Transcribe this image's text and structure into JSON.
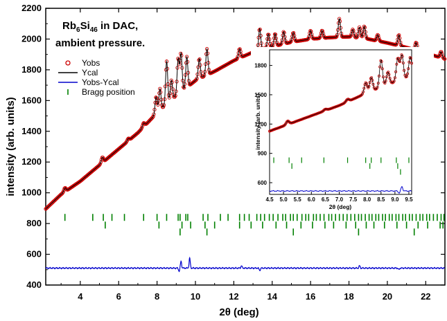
{
  "chart_data": [
    {
      "type": "line",
      "title_main": "Rb",
      "title_sub1": "6",
      "title_mid": "Si",
      "title_sub2": "46",
      "title_rest": " in DAC,",
      "title_line2": "ambient pressure.",
      "xlabel": "2θ (deg)",
      "ylabel": "intensity (arb. units)",
      "xlim": [
        2.2,
        23.0
      ],
      "ylim": [
        400,
        2200
      ],
      "xticks": [
        "4",
        "6",
        "8",
        "10",
        "12",
        "14",
        "16",
        "18",
        "20",
        "22"
      ],
      "yticks": [
        "400",
        "600",
        "800",
        "1000",
        "1200",
        "1400",
        "1600",
        "1800",
        "2000",
        "2200"
      ],
      "legend": [
        {
          "label": "Yobs",
          "color": "#cc0000",
          "marker": "circle"
        },
        {
          "label": "Ycal",
          "color": "#000000",
          "marker": "line"
        },
        {
          "label": "Yobs-Ycal",
          "color": "#0000cc",
          "marker": "line"
        },
        {
          "label": "Bragg position",
          "color": "#008000",
          "marker": "tick"
        }
      ],
      "background": {
        "points": [
          [
            2.2,
            895
          ],
          [
            3,
            990
          ],
          [
            4,
            1075
          ],
          [
            5,
            1180
          ],
          [
            6,
            1285
          ],
          [
            7,
            1390
          ],
          [
            8,
            1520
          ],
          [
            9,
            1630
          ],
          [
            10,
            1730
          ],
          [
            11,
            1790
          ],
          [
            12,
            1860
          ],
          [
            13,
            1915
          ],
          [
            14,
            1950
          ],
          [
            15,
            1980
          ],
          [
            16,
            2000
          ],
          [
            17,
            2010
          ],
          [
            18,
            2015
          ],
          [
            19,
            2000
          ],
          [
            20,
            1975
          ],
          [
            21,
            1945
          ],
          [
            22,
            1910
          ],
          [
            23,
            1870
          ]
        ]
      },
      "peaks": [
        {
          "x": 3.2,
          "h": 25
        },
        {
          "x": 5.15,
          "h": 35
        },
        {
          "x": 6.5,
          "h": 15
        },
        {
          "x": 7.3,
          "h": 25
        },
        {
          "x": 7.95,
          "h": 110
        },
        {
          "x": 8.15,
          "h": 140
        },
        {
          "x": 8.5,
          "h": 280
        },
        {
          "x": 8.75,
          "h": 130
        },
        {
          "x": 9.1,
          "h": 230
        },
        {
          "x": 9.25,
          "h": 250
        },
        {
          "x": 9.55,
          "h": 200
        },
        {
          "x": 10.2,
          "h": 130
        },
        {
          "x": 10.6,
          "h": 170
        },
        {
          "x": 12.3,
          "h": 60
        },
        {
          "x": 13.35,
          "h": 140
        },
        {
          "x": 13.8,
          "h": 90
        },
        {
          "x": 14.15,
          "h": 80
        },
        {
          "x": 14.6,
          "h": 80
        },
        {
          "x": 15.1,
          "h": 60
        },
        {
          "x": 16.0,
          "h": 55
        },
        {
          "x": 16.6,
          "h": 50
        },
        {
          "x": 17.5,
          "h": 120
        },
        {
          "x": 18.2,
          "h": 50
        },
        {
          "x": 18.55,
          "h": 70
        },
        {
          "x": 18.8,
          "h": 80
        },
        {
          "x": 19.5,
          "h": 40
        },
        {
          "x": 20.6,
          "h": 70
        },
        {
          "x": 21.5,
          "h": 50
        },
        {
          "x": 22.8,
          "h": 40
        }
      ],
      "diff_baseline": 510,
      "diff_spikes": [
        [
          9.25,
          555
        ],
        [
          9.7,
          575
        ],
        [
          9.15,
          490
        ],
        [
          12.4,
          525
        ],
        [
          13.35,
          495
        ],
        [
          18.55,
          525
        ],
        [
          20.6,
          500
        ]
      ],
      "bragg_rows": [
        {
          "y": 840,
          "x": [
            3.2,
            4.65,
            5.2,
            5.65,
            6.3,
            7.3,
            8.0,
            8.5,
            9.1,
            9.2,
            9.5,
            9.6,
            10.4,
            10.65,
            11.3,
            11.7,
            12.3,
            12.55,
            12.8,
            13.2,
            13.4,
            13.6,
            13.85,
            14.05,
            14.3,
            14.55,
            14.7,
            14.95,
            15.1,
            15.3,
            15.55,
            15.75,
            15.9,
            16.15,
            16.3,
            16.5,
            16.7,
            16.95,
            17.1,
            17.3,
            17.5,
            17.7,
            17.9,
            18.1,
            18.3,
            18.5,
            18.65,
            18.85,
            19.05,
            19.2,
            19.4,
            19.55,
            19.75,
            19.9,
            20.1,
            20.25,
            20.45,
            20.6,
            20.8,
            20.95,
            21.15,
            21.3,
            21.5,
            21.7,
            21.85,
            22.05,
            22.2,
            22.4,
            22.6,
            22.8,
            22.95
          ]
        },
        {
          "y": 790,
          "x": [
            5.3,
            8.1,
            9.3,
            9.75,
            10.5,
            11.0,
            12.3,
            12.9,
            13.5,
            14.2,
            14.75,
            15.5,
            16.1,
            16.75,
            17.2,
            17.85,
            18.35,
            18.9,
            19.3,
            19.85,
            20.5,
            21.0,
            21.6,
            22.1,
            22.75,
            22.9
          ]
        },
        {
          "y": 745,
          "x": [
            9.2,
            10.6,
            15.1,
            18.5,
            21.4
          ]
        }
      ]
    },
    {
      "type": "line",
      "xlabel": "2θ (deg)",
      "ylabel": "intensity (arb. units)",
      "xlim": [
        4.5,
        9.6
      ],
      "ylim": [
        480,
        1960
      ],
      "xticks": [
        "4.5",
        "5.0",
        "5.5",
        "6.0",
        "6.5",
        "7.0",
        "7.5",
        "8.0",
        "8.5",
        "9.0",
        "9.5"
      ],
      "yticks": [
        "600",
        "900",
        "1200",
        "1500",
        "1800"
      ],
      "bragg_rows": [
        {
          "y": 830,
          "x": [
            4.65,
            5.2,
            5.65,
            6.45,
            7.3,
            7.95,
            8.15,
            8.5,
            9.05,
            9.5
          ]
        },
        {
          "y": 770,
          "x": [
            5.3,
            8.1,
            9.1
          ]
        },
        {
          "y": 710,
          "x": [
            9.2
          ]
        }
      ],
      "diff_baseline": 515
    }
  ]
}
